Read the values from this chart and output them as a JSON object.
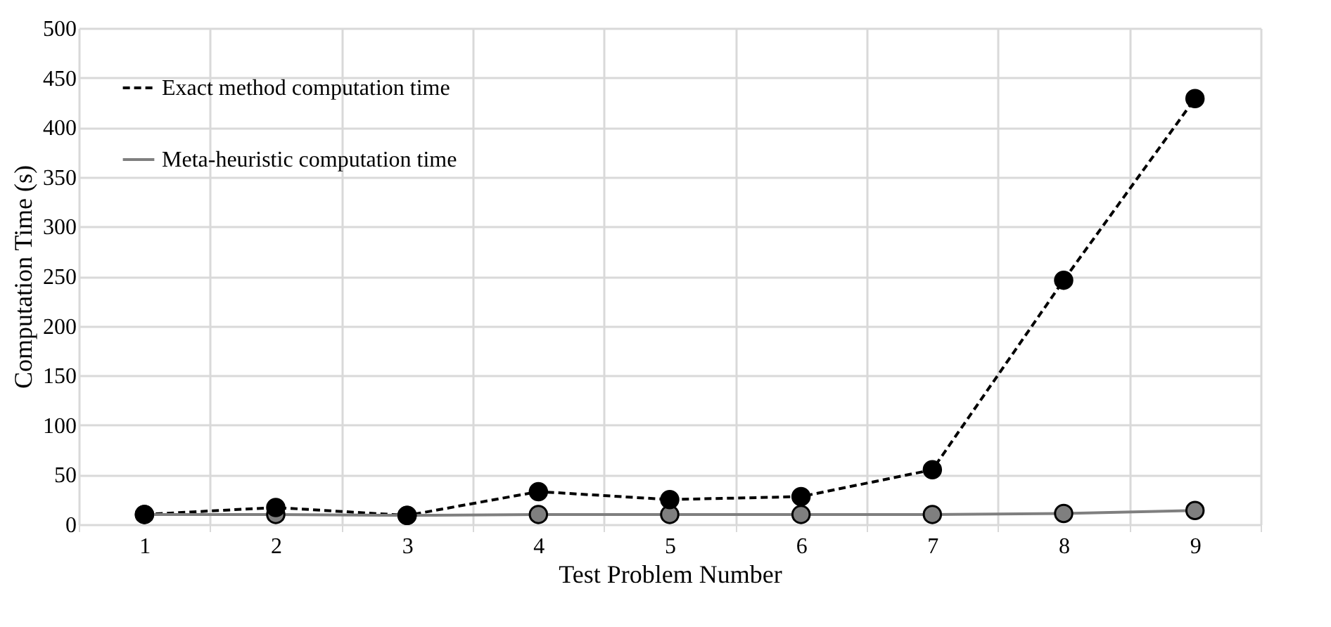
{
  "chart_data": {
    "type": "line",
    "xlabel": "Test Problem Number",
    "ylabel": "Computation Time (s)",
    "categories": [
      "1",
      "2",
      "3",
      "4",
      "5",
      "6",
      "7",
      "8",
      "9"
    ],
    "series": [
      {
        "name": "Exact method computation time",
        "color": "#000000",
        "line_style": "dashed",
        "values": [
          10,
          17,
          9,
          33,
          25,
          28,
          55,
          246,
          429
        ]
      },
      {
        "name": "Meta-heuristic computation time",
        "color": "#7f7f7f",
        "line_style": "solid",
        "values": [
          10,
          10,
          9,
          10,
          10,
          10,
          10,
          11,
          14
        ]
      }
    ],
    "ylim": [
      0,
      500
    ],
    "yticks": [
      0,
      50,
      100,
      150,
      200,
      250,
      300,
      350,
      400,
      450,
      500
    ],
    "grid": true,
    "legend": "top left",
    "marker": "circle"
  }
}
